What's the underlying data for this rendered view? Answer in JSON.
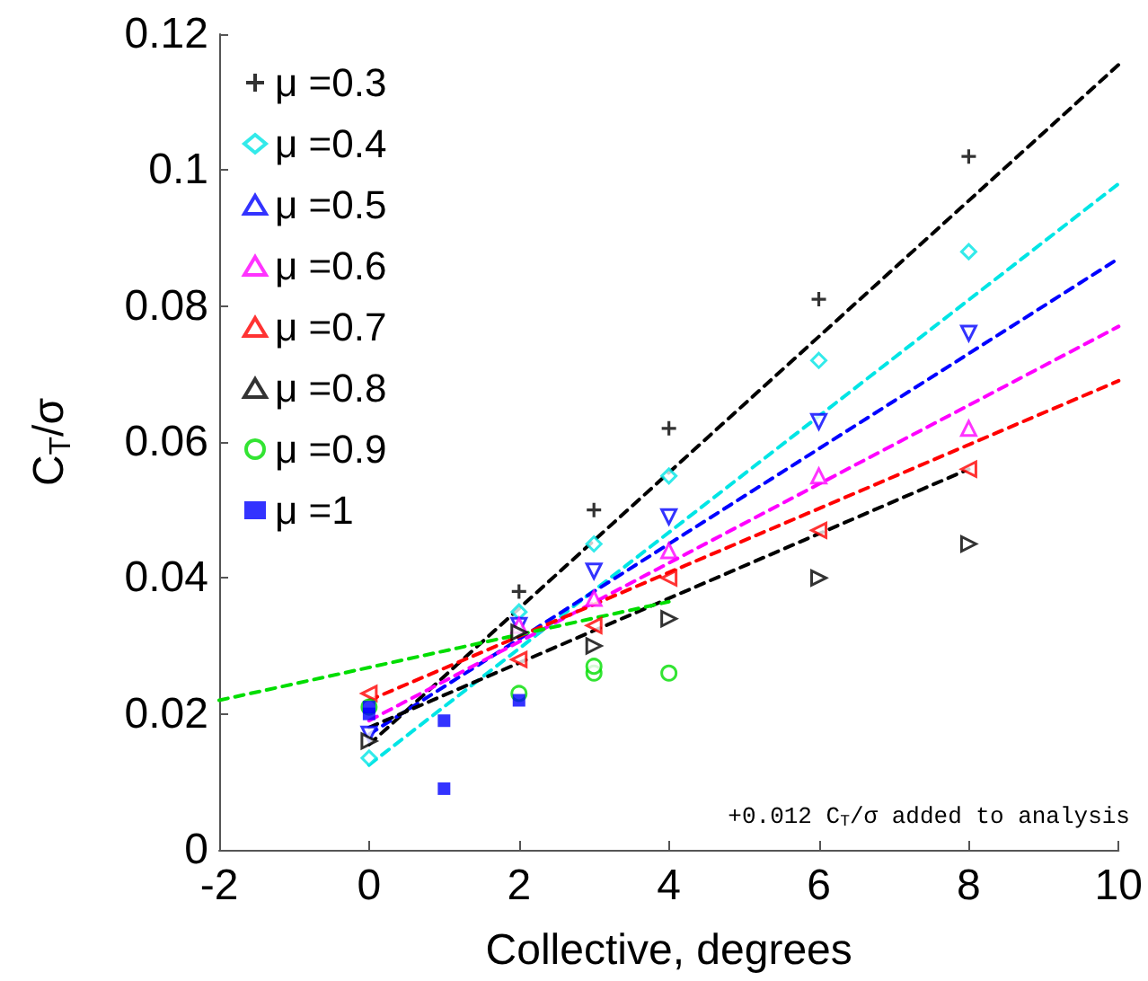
{
  "chart_data": {
    "type": "scatter",
    "xlabel": "Collective, degrees",
    "ylabel": "C$_{T}$/σ",
    "xlim": [
      -2,
      10
    ],
    "xticks": [
      -2,
      0,
      2,
      4,
      6,
      8,
      10
    ],
    "ylim": [
      0,
      0.12
    ],
    "yticks": [
      0,
      0.02,
      0.04,
      0.06,
      0.08,
      0.1,
      0.12
    ],
    "grid": false,
    "legend": "top left",
    "line_style": "dashed",
    "annotations": [
      "+0.012 C$_{T}$/σ added to analysis"
    ],
    "series": [
      {
        "name": "μ =0.3",
        "color": "#000000",
        "marker": "cross",
        "x": [
          2,
          3,
          4,
          6,
          8
        ],
        "values": [
          0.038,
          0.05,
          0.062,
          0.081,
          0.102
        ]
      },
      {
        "name": "μ =0.4",
        "color": "#00e5e5",
        "marker": "diamond",
        "x": [
          0,
          2,
          3,
          4,
          6,
          8
        ],
        "values": [
          0.0135,
          0.035,
          0.045,
          0.055,
          0.072,
          0.088
        ]
      },
      {
        "name": "μ =0.5",
        "color": "#0000ff",
        "marker": "triangle-down",
        "x": [
          0,
          2,
          3,
          4,
          6,
          8
        ],
        "values": [
          0.017,
          0.033,
          0.041,
          0.049,
          0.063,
          0.076
        ]
      },
      {
        "name": "μ =0.6",
        "color": "#ff00ff",
        "marker": "triangle",
        "x": [
          2,
          3,
          4,
          6,
          8
        ],
        "values": [
          0.033,
          0.037,
          0.044,
          0.055,
          0.062
        ]
      },
      {
        "name": "μ =0.7",
        "color": "#ff0000",
        "marker": "triangle-left",
        "x": [
          0,
          2,
          3,
          4,
          6,
          8
        ],
        "values": [
          0.023,
          0.028,
          0.033,
          0.04,
          0.047,
          0.056
        ]
      },
      {
        "name": "μ =0.8",
        "color": "#000000",
        "marker": "triangle-right",
        "x": [
          0,
          2,
          3,
          4,
          6,
          8
        ],
        "values": [
          0.016,
          0.032,
          0.03,
          0.034,
          0.04,
          0.045
        ]
      },
      {
        "name": "μ =0.9",
        "color": "#00dd00",
        "marker": "circle",
        "x": [
          0,
          2,
          3,
          3,
          4
        ],
        "values": [
          0.021,
          0.023,
          0.026,
          0.027,
          0.026
        ]
      },
      {
        "name": "μ =1",
        "color": "#0000ff",
        "marker": "square",
        "x": [
          0,
          0,
          1,
          1,
          2
        ],
        "values": [
          0.02,
          0.021,
          0.019,
          0.009,
          0.022
        ]
      },
      {
        "type": "line",
        "color": "#000000",
        "x": [
          0,
          10
        ],
        "values": [
          0.0155,
          0.1155
        ]
      },
      {
        "type": "line",
        "color": "#00e5e5",
        "x": [
          0,
          10
        ],
        "values": [
          0.0125,
          0.098
        ]
      },
      {
        "type": "line",
        "color": "#0000ff",
        "x": [
          0,
          10
        ],
        "values": [
          0.017,
          0.087
        ]
      },
      {
        "type": "line",
        "color": "#ff00ff",
        "x": [
          0,
          10
        ],
        "values": [
          0.019,
          0.077
        ]
      },
      {
        "type": "line",
        "color": "#ff0000",
        "x": [
          0,
          10
        ],
        "values": [
          0.022,
          0.069
        ]
      },
      {
        "type": "line",
        "color": "#000000",
        "x": [
          0,
          8
        ],
        "values": [
          0.018,
          0.056
        ]
      },
      {
        "type": "line",
        "color": "#00dd00",
        "x": [
          -2,
          4
        ],
        "values": [
          0.022,
          0.0365
        ]
      }
    ]
  }
}
